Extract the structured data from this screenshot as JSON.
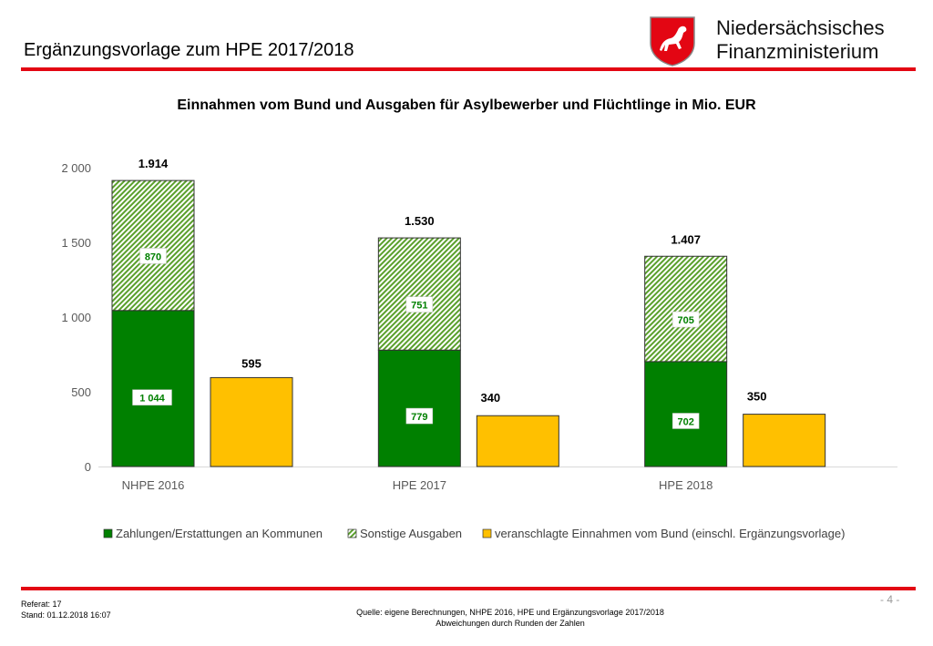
{
  "header": {
    "slide_title": "Ergänzungsvorlage zum HPE 2017/2018",
    "ministry_line1": "Niedersächsisches",
    "ministry_line2": "Finanzministerium",
    "logo_icon": "lower-saxony-horse-crest"
  },
  "chart_title": {
    "part1": "Einnahmen vom Bund",
    "part2": " und Ausgaben für Asylbewerber und Flüchtlinge in Mio.",
    "part3": " EUR"
  },
  "colors": {
    "accent_red": "#e30613",
    "payments_green": "#008000",
    "other_hatch_green": "#5aa02c",
    "federal_yellow": "#ffc000"
  },
  "chart_data": {
    "type": "bar",
    "stacked_with_side_bar": true,
    "categories": [
      "NHPE 2016",
      "HPE 2017",
      "HPE 2018"
    ],
    "series": [
      {
        "name": "Zahlungen/Erstattungen an Kommunen",
        "values": [
          1044,
          779,
          702
        ],
        "labels": [
          "1 044",
          "779",
          "702"
        ],
        "style": "solid-green",
        "stack": "expenses"
      },
      {
        "name": "Sonstige Ausgaben",
        "values": [
          870,
          751,
          705
        ],
        "labels": [
          "870",
          "751",
          "705"
        ],
        "style": "hatched-green",
        "stack": "expenses"
      },
      {
        "name": "veranschlagte Einnahmen vom Bund (einschl. Ergänzungsvorlage)",
        "values": [
          595,
          340,
          350
        ],
        "labels": [
          "595",
          "340",
          "350"
        ],
        "style": "solid-yellow",
        "stack": "income"
      }
    ],
    "totals": [
      1914,
      1530,
      1407
    ],
    "total_labels": [
      "1.914",
      "1.530",
      "1.407"
    ],
    "y_ticks": [
      0,
      500,
      1000,
      1500,
      2000
    ],
    "y_tick_labels": [
      "0",
      "500",
      "1 000",
      "1 500",
      "2 000"
    ],
    "ylim": [
      0,
      2000
    ],
    "grid": false,
    "legend_position": "bottom"
  },
  "footer": {
    "referat": "Referat: 17",
    "stand": "Stand: 01.12.2018 16:07",
    "source": "Quelle: eigene Berechnungen, NHPE 2016, HPE und Ergänzungsvorlage 2017/2018",
    "rounding_note": "Abweichungen durch Runden der Zahlen",
    "page_number": "- 4 -"
  }
}
